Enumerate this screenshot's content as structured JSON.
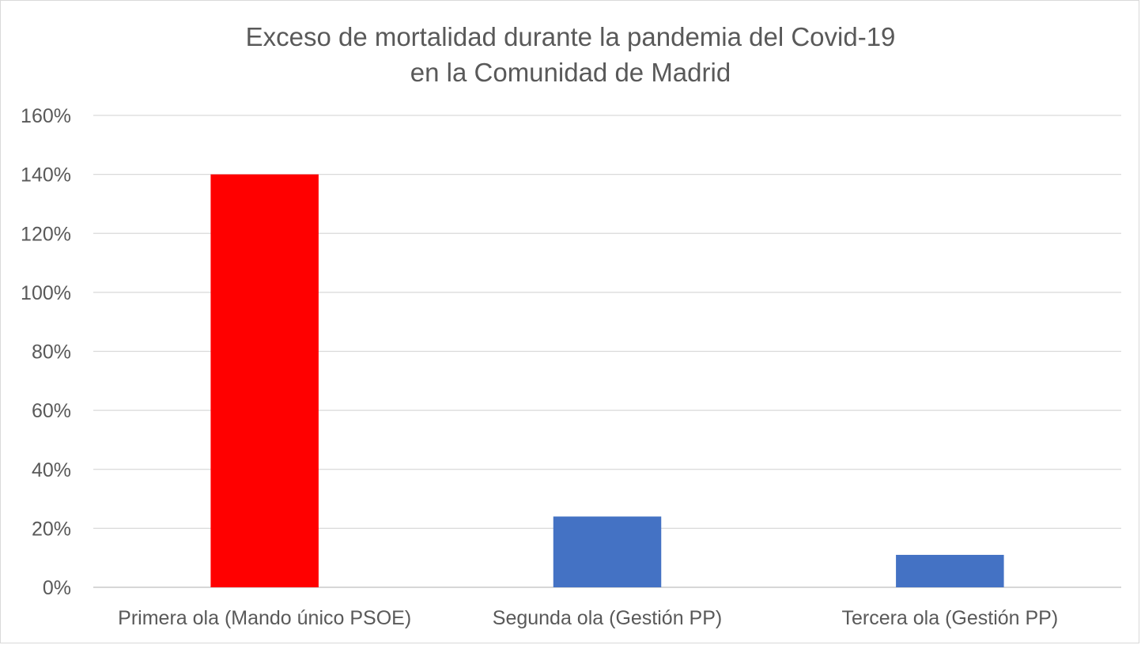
{
  "chart_data": {
    "type": "bar",
    "title_lines": [
      "Exceso de mortalidad durante la pandemia del Covid-19",
      "en la Comunidad de Madrid"
    ],
    "categories": [
      "Primera ola (Mando único PSOE)",
      "Segunda ola (Gestión PP)",
      "Tercera ola (Gestión PP)"
    ],
    "values": [
      140,
      24,
      11
    ],
    "bar_colors": [
      "#ff0000",
      "#4472c4",
      "#4472c4"
    ],
    "value_unit": "%",
    "ylim": [
      0,
      160
    ],
    "y_ticks": [
      0,
      20,
      40,
      60,
      80,
      100,
      120,
      140,
      160
    ],
    "y_tick_labels": [
      "0%",
      "20%",
      "40%",
      "60%",
      "80%",
      "100%",
      "120%",
      "140%",
      "160%"
    ],
    "xlabel": "",
    "ylabel": "",
    "grid": true,
    "legend": "none"
  }
}
